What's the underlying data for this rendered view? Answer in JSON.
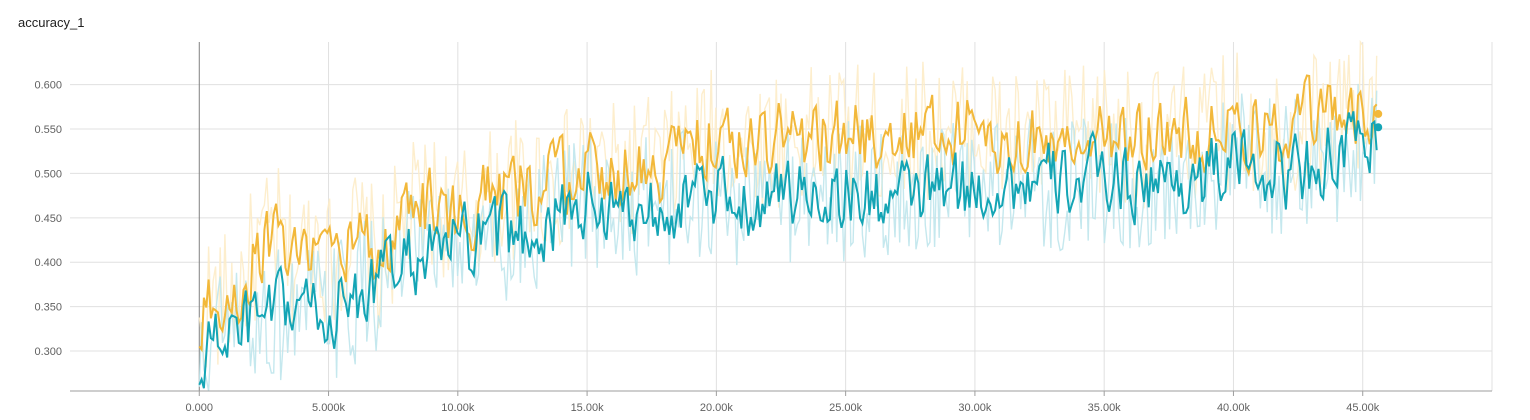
{
  "chart_data": {
    "type": "line",
    "title": "accuracy_1",
    "xlabel": "",
    "ylabel": "",
    "x_tick_labels": [
      "0.000",
      "5.000k",
      "10.00k",
      "15.00k",
      "20.00k",
      "25.00k",
      "30.00k",
      "35.00k",
      "40.00k",
      "45.00k"
    ],
    "y_tick_labels": [
      "0.300",
      "0.350",
      "0.400",
      "0.450",
      "0.500",
      "0.550",
      "0.600"
    ],
    "xlim": [
      -5000,
      50000
    ],
    "ylim": [
      0.255,
      0.648
    ],
    "grid": true,
    "legend": "none",
    "colors": {
      "gold_smoothed": "#f2b83a",
      "gold_raw": "#fdecc8",
      "teal_smoothed": "#14a5b5",
      "teal_raw": "#bfe6ec",
      "grid": "#e0e0e0",
      "zero_axis": "#808080"
    },
    "series": [
      {
        "color": "#f2b83a",
        "end_value": 0.567,
        "points": [
          [
            0,
            0.3
          ],
          [
            300,
            0.36
          ],
          [
            800,
            0.35
          ],
          [
            1500,
            0.37
          ],
          [
            2000,
            0.4
          ],
          [
            2500,
            0.42
          ],
          [
            3000,
            0.43
          ],
          [
            3500,
            0.4
          ],
          [
            4000,
            0.41
          ],
          [
            4500,
            0.44
          ],
          [
            5000,
            0.4
          ],
          [
            5500,
            0.41
          ],
          [
            6000,
            0.43
          ],
          [
            6500,
            0.42
          ],
          [
            7000,
            0.39
          ],
          [
            7500,
            0.43
          ],
          [
            8000,
            0.45
          ],
          [
            9000,
            0.47
          ],
          [
            10000,
            0.45
          ],
          [
            11000,
            0.47
          ],
          [
            12000,
            0.48
          ],
          [
            13000,
            0.49
          ],
          [
            14000,
            0.49
          ],
          [
            15000,
            0.51
          ],
          [
            16000,
            0.5
          ],
          [
            17000,
            0.51
          ],
          [
            18000,
            0.51
          ],
          [
            19000,
            0.53
          ],
          [
            20000,
            0.54
          ],
          [
            21000,
            0.53
          ],
          [
            22000,
            0.54
          ],
          [
            23000,
            0.54
          ],
          [
            24000,
            0.54
          ],
          [
            25000,
            0.55
          ],
          [
            26000,
            0.54
          ],
          [
            27000,
            0.54
          ],
          [
            28000,
            0.55
          ],
          [
            29000,
            0.55
          ],
          [
            30000,
            0.55
          ],
          [
            31000,
            0.54
          ],
          [
            32000,
            0.54
          ],
          [
            33000,
            0.54
          ],
          [
            34000,
            0.54
          ],
          [
            35000,
            0.55
          ],
          [
            36000,
            0.54
          ],
          [
            37000,
            0.54
          ],
          [
            38000,
            0.54
          ],
          [
            39000,
            0.55
          ],
          [
            40000,
            0.56
          ],
          [
            41000,
            0.55
          ],
          [
            42000,
            0.55
          ],
          [
            43000,
            0.56
          ],
          [
            44000,
            0.57
          ],
          [
            45000,
            0.575
          ],
          [
            45600,
            0.567
          ]
        ]
      },
      {
        "color": "#14a5b5",
        "end_value": 0.552,
        "points": [
          [
            0,
            0.26
          ],
          [
            300,
            0.3
          ],
          [
            800,
            0.32
          ],
          [
            1500,
            0.32
          ],
          [
            2000,
            0.33
          ],
          [
            3000,
            0.34
          ],
          [
            4000,
            0.35
          ],
          [
            5000,
            0.34
          ],
          [
            6000,
            0.36
          ],
          [
            7000,
            0.38
          ],
          [
            8000,
            0.4
          ],
          [
            9000,
            0.41
          ],
          [
            10000,
            0.42
          ],
          [
            11000,
            0.42
          ],
          [
            12000,
            0.43
          ],
          [
            13000,
            0.44
          ],
          [
            14000,
            0.45
          ],
          [
            15000,
            0.47
          ],
          [
            16000,
            0.46
          ],
          [
            17000,
            0.46
          ],
          [
            18000,
            0.47
          ],
          [
            19000,
            0.47
          ],
          [
            20000,
            0.47
          ],
          [
            21000,
            0.47
          ],
          [
            22000,
            0.47
          ],
          [
            23000,
            0.48
          ],
          [
            24000,
            0.48
          ],
          [
            25000,
            0.48
          ],
          [
            26000,
            0.47
          ],
          [
            27000,
            0.47
          ],
          [
            28000,
            0.48
          ],
          [
            29000,
            0.48
          ],
          [
            30000,
            0.48
          ],
          [
            31000,
            0.49
          ],
          [
            32000,
            0.49
          ],
          [
            33000,
            0.49
          ],
          [
            34000,
            0.49
          ],
          [
            35000,
            0.5
          ],
          [
            36000,
            0.49
          ],
          [
            37000,
            0.49
          ],
          [
            38000,
            0.49
          ],
          [
            39000,
            0.5
          ],
          [
            40000,
            0.51
          ],
          [
            41000,
            0.51
          ],
          [
            42000,
            0.5
          ],
          [
            43000,
            0.51
          ],
          [
            44000,
            0.52
          ],
          [
            45000,
            0.53
          ],
          [
            45600,
            0.552
          ]
        ]
      }
    ]
  }
}
